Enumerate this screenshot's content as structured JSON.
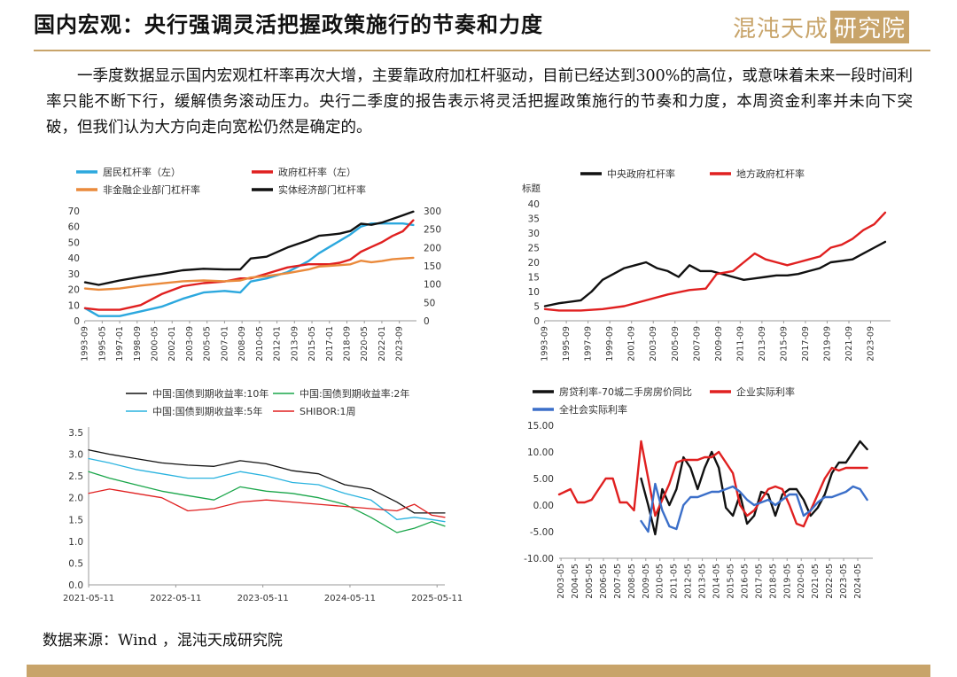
{
  "page": {
    "title": "国内宏观：央行强调灵活把握政策施行的节奏和力度",
    "logo_text": "混沌天成",
    "logo_box_text": "研究院",
    "intro": "一季度数据显示国内宏观杠杆率再次大增，主要靠政府加杠杆驱动，目前已经达到300%的高位，或意味着未来一段时间利率只能不断下行，缓解债务滚动压力。央行二季度的报告表示将灵活把握政策施行的节奏和力度，本周资金利率并未向下突破，但我们认为大方向走向宽松仍然是确定的。",
    "source": "数据来源：Wind ，混沌天成研究院",
    "accent_color": "#c8a46a"
  },
  "chart_data": [
    {
      "type": "line",
      "x_ticks": [
        "1993-09",
        "1995-05",
        "1997-01",
        "1998-09",
        "2000-05",
        "2002-01",
        "2003-09",
        "2005-05",
        "2007-01",
        "2008-09",
        "2010-05",
        "2012-01",
        "2013-09",
        "2015-05",
        "2017-01",
        "2018-09",
        "2020-05",
        "2022-01",
        "2023-09"
      ],
      "xlim": [
        1993.7,
        2025.3
      ],
      "ylim": [
        0,
        70
      ],
      "y_ticks": [
        0,
        10,
        20,
        30,
        40,
        50,
        60,
        70
      ],
      "ylim_right": [
        0,
        300
      ],
      "y_ticks_right": [
        0,
        50,
        100,
        150,
        200,
        250,
        300
      ],
      "legend_position": "top",
      "series": [
        {
          "name": "居民杠杆率（左）",
          "axis": "left",
          "color": "#2ca8de",
          "x": [
            1993.7,
            1995,
            1997,
            1999,
            2001,
            2003,
            2005,
            2007,
            2008.5,
            2009.5,
            2011,
            2013,
            2015,
            2016,
            2017,
            2018,
            2019,
            2020,
            2021,
            2022,
            2023,
            2024,
            2025
          ],
          "y": [
            8,
            3,
            3,
            6,
            9,
            14,
            18,
            19,
            18,
            25,
            27,
            31,
            38,
            43,
            47,
            51,
            55,
            60,
            62,
            62,
            62,
            62,
            61
          ]
        },
        {
          "name": "政府杠杆率（左）",
          "axis": "left",
          "color": "#e02020",
          "x": [
            1993.7,
            1995,
            1997,
            1999,
            2001,
            2003,
            2005,
            2007,
            2008.5,
            2009.5,
            2011,
            2013,
            2015,
            2016,
            2017,
            2018,
            2019,
            2020,
            2021,
            2022,
            2023,
            2024,
            2025
          ],
          "y": [
            8,
            7,
            7,
            10,
            17,
            22,
            24,
            25,
            27,
            27,
            30,
            34,
            36,
            36,
            36,
            37,
            39,
            44,
            47,
            50,
            54,
            57,
            64
          ]
        },
        {
          "name": "非金融企业部门杠杆率",
          "axis": "right",
          "color": "#ea8a3c",
          "x": [
            1993.7,
            1995,
            1997,
            1999,
            2001,
            2003,
            2005,
            2007,
            2008.5,
            2009.5,
            2011,
            2013,
            2015,
            2016,
            2017,
            2018,
            2019,
            2020,
            2021,
            2022,
            2023,
            2024,
            2025
          ],
          "y": [
            88,
            85,
            88,
            96,
            102,
            108,
            110,
            108,
            110,
            118,
            122,
            130,
            140,
            148,
            150,
            152,
            154,
            164,
            160,
            163,
            168,
            170,
            172
          ]
        },
        {
          "name": "实体经济部门杠杆率",
          "axis": "right",
          "color": "#111111",
          "x": [
            1993.7,
            1995,
            1997,
            1999,
            2001,
            2003,
            2005,
            2007,
            2008.5,
            2009.5,
            2011,
            2013,
            2015,
            2016,
            2017,
            2018,
            2019,
            2020,
            2021,
            2022,
            2023,
            2024,
            2025
          ],
          "y": [
            105,
            98,
            110,
            120,
            128,
            138,
            142,
            140,
            140,
            170,
            175,
            200,
            220,
            232,
            235,
            238,
            245,
            265,
            262,
            268,
            278,
            288,
            298
          ]
        }
      ]
    },
    {
      "type": "line",
      "ylabel": "标题",
      "x_ticks": [
        "1993-09",
        "1995-09",
        "1997-09",
        "1999-09",
        "2001-09",
        "2003-09",
        "2005-09",
        "2007-09",
        "2009-09",
        "2011-09",
        "2013-09",
        "2015-09",
        "2017-09",
        "2019-09",
        "2021-09",
        "2023-09"
      ],
      "xlim": [
        1993.7,
        2025.5
      ],
      "ylim": [
        0,
        40
      ],
      "y_ticks": [
        0,
        5,
        10,
        15,
        20,
        25,
        30,
        35,
        40
      ],
      "legend_position": "top",
      "series": [
        {
          "name": "中央政府杠杆率",
          "color": "#111111",
          "x": [
            1993.7,
            1995,
            1997,
            1998,
            1999,
            2000,
            2001,
            2002,
            2003,
            2004,
            2005,
            2006,
            2007,
            2008,
            2009,
            2010,
            2011,
            2012,
            2013,
            2014,
            2015,
            2016,
            2017,
            2018,
            2019,
            2020,
            2021,
            2022,
            2023,
            2024,
            2025
          ],
          "y": [
            5,
            6,
            7,
            10,
            14,
            16,
            18,
            19,
            20,
            18,
            17,
            15,
            19,
            17,
            17,
            16,
            15,
            14,
            14.5,
            15,
            15.5,
            15.5,
            16,
            17,
            18,
            20,
            20.5,
            21,
            23,
            25,
            27
          ]
        },
        {
          "name": "地方政府杠杆率",
          "color": "#e02020",
          "x": [
            1993.7,
            1995,
            1997,
            1999,
            2001,
            2003,
            2005,
            2007,
            2008.5,
            2009.5,
            2011,
            2012,
            2013,
            2014,
            2015,
            2016,
            2017,
            2018,
            2019,
            2020,
            2021,
            2022,
            2023,
            2024,
            2025
          ],
          "y": [
            4,
            3.5,
            3.5,
            4,
            5,
            7,
            9,
            10.5,
            11,
            16,
            17,
            20,
            23,
            21,
            20,
            19,
            20,
            21,
            22,
            25,
            26,
            28,
            31,
            33,
            37
          ]
        }
      ]
    },
    {
      "type": "line",
      "x_ticks": [
        "2021-05-11",
        "2022-05-11",
        "2023-05-11",
        "2024-05-11",
        "2025-05-11"
      ],
      "xlim": [
        2021.36,
        2025.45
      ],
      "ylim": [
        0,
        3.5
      ],
      "y_ticks": [
        "0.0",
        "0.5",
        "1.0",
        "1.5",
        "2.0",
        "2.5",
        "3.0",
        "3.5"
      ],
      "legend_position": "top",
      "series": [
        {
          "name": "中国:国债到期收益率:10年",
          "color": "#111111",
          "x": [
            2021.36,
            2021.6,
            2021.9,
            2022.2,
            2022.5,
            2022.8,
            2023.1,
            2023.4,
            2023.7,
            2024.0,
            2024.3,
            2024.6,
            2024.9,
            2025.1,
            2025.3,
            2025.45
          ],
          "y": [
            3.1,
            3.0,
            2.9,
            2.8,
            2.75,
            2.72,
            2.85,
            2.78,
            2.62,
            2.55,
            2.3,
            2.2,
            1.9,
            1.65,
            1.65,
            1.65
          ]
        },
        {
          "name": "中国:国债到期收益率:2年",
          "color": "#1aa64a",
          "x": [
            2021.36,
            2021.6,
            2021.9,
            2022.2,
            2022.5,
            2022.8,
            2023.1,
            2023.4,
            2023.7,
            2024.0,
            2024.3,
            2024.6,
            2024.9,
            2025.1,
            2025.3,
            2025.45
          ],
          "y": [
            2.6,
            2.45,
            2.3,
            2.15,
            2.05,
            1.95,
            2.25,
            2.15,
            2.1,
            2.0,
            1.85,
            1.55,
            1.2,
            1.3,
            1.45,
            1.35
          ]
        },
        {
          "name": "中国:国债到期收益率:5年",
          "color": "#2ab3df",
          "x": [
            2021.36,
            2021.6,
            2021.9,
            2022.2,
            2022.5,
            2022.8,
            2023.1,
            2023.4,
            2023.7,
            2024.0,
            2024.3,
            2024.6,
            2024.9,
            2025.1,
            2025.3,
            2025.45
          ],
          "y": [
            2.9,
            2.8,
            2.65,
            2.55,
            2.45,
            2.45,
            2.6,
            2.5,
            2.35,
            2.3,
            2.1,
            1.95,
            1.5,
            1.55,
            1.5,
            1.45
          ]
        },
        {
          "name": "SHIBOR:1周",
          "color": "#e02020",
          "x": [
            2021.36,
            2021.6,
            2021.9,
            2022.2,
            2022.5,
            2022.8,
            2023.1,
            2023.4,
            2023.7,
            2024.0,
            2024.3,
            2024.6,
            2024.9,
            2025.1,
            2025.3,
            2025.45
          ],
          "y": [
            2.1,
            2.2,
            2.1,
            2.0,
            1.7,
            1.75,
            1.9,
            1.95,
            1.9,
            1.85,
            1.8,
            1.75,
            1.7,
            1.85,
            1.6,
            1.55
          ]
        }
      ]
    },
    {
      "type": "line",
      "x_ticks": [
        "2003-05",
        "2004-05",
        "2005-05",
        "2006-05",
        "2007-05",
        "2008-05",
        "2009-05",
        "2010-05",
        "2011-05",
        "2012-05",
        "2013-05",
        "2014-05",
        "2015-05",
        "2016-05",
        "2017-05",
        "2018-05",
        "2019-05",
        "2020-05",
        "2021-05",
        "2022-05",
        "2023-05",
        "2024-05"
      ],
      "xlim": [
        2003.2,
        2025.4
      ],
      "ylim": [
        -10,
        15
      ],
      "y_ticks": [
        "-10.00",
        "-5.00",
        "0.00",
        "5.00",
        "10.00",
        "15.00"
      ],
      "legend_position": "top",
      "series": [
        {
          "name": "房贷利率-70城二手房房价同比",
          "color": "#111111",
          "x": [
            2009.0,
            2009.5,
            2010.0,
            2010.5,
            2011.0,
            2011.5,
            2012.0,
            2012.5,
            2013.0,
            2013.5,
            2014.0,
            2014.5,
            2015.0,
            2015.5,
            2016.0,
            2016.5,
            2017.0,
            2017.5,
            2018.0,
            2018.5,
            2019.0,
            2019.5,
            2020.0,
            2020.5,
            2021.0,
            2021.5,
            2022.0,
            2022.5,
            2023.0,
            2023.5,
            2024.0,
            2024.5,
            2025.0
          ],
          "y": [
            5.0,
            0.0,
            -5.5,
            3.0,
            0.0,
            3.0,
            9.0,
            7.0,
            3.0,
            7.0,
            10.0,
            7.0,
            -0.5,
            -2.0,
            2.0,
            -3.5,
            -2.0,
            2.5,
            2.0,
            -2.0,
            2.0,
            3.0,
            3.0,
            1.0,
            -2.0,
            -0.5,
            2.0,
            6.0,
            8.0,
            8.0,
            10.0,
            12.0,
            10.5
          ]
        },
        {
          "name": "企业实际利率",
          "color": "#e02020",
          "x": [
            2003.2,
            2004.0,
            2004.5,
            2005.0,
            2005.5,
            2006.0,
            2006.5,
            2007.0,
            2007.5,
            2008.0,
            2008.5,
            2009.0,
            2009.5,
            2010.0,
            2010.5,
            2011.0,
            2011.5,
            2012.0,
            2012.5,
            2013.0,
            2013.5,
            2014.0,
            2014.5,
            2015.0,
            2015.5,
            2016.0,
            2016.5,
            2017.0,
            2017.5,
            2018.0,
            2018.5,
            2019.0,
            2019.5,
            2020.0,
            2020.5,
            2021.0,
            2021.5,
            2022.0,
            2022.5,
            2023.0,
            2023.5,
            2024.0,
            2024.5,
            2025.0
          ],
          "y": [
            2.0,
            3.0,
            0.5,
            0.5,
            1.0,
            3.0,
            5.0,
            5.0,
            0.5,
            0.5,
            -1.0,
            12.0,
            5.0,
            -2.0,
            1.0,
            4.0,
            8.0,
            8.5,
            8.5,
            8.5,
            9.0,
            9.0,
            10.0,
            8.0,
            6.0,
            0.0,
            -2.0,
            -1.0,
            1.0,
            3.0,
            3.5,
            3.0,
            0.0,
            -3.5,
            -4.0,
            -1.0,
            2.0,
            5.0,
            7.0,
            6.5,
            7.0,
            7.0,
            7.0,
            7.0
          ]
        },
        {
          "name": "全社会实际利率",
          "color": "#3b6fc9",
          "x": [
            2009.0,
            2009.5,
            2010.0,
            2010.5,
            2011.0,
            2011.5,
            2012.0,
            2012.5,
            2013.0,
            2013.5,
            2014.0,
            2014.5,
            2015.0,
            2015.5,
            2016.0,
            2016.5,
            2017.0,
            2017.5,
            2018.0,
            2018.5,
            2019.0,
            2019.5,
            2020.0,
            2020.5,
            2021.0,
            2021.5,
            2022.0,
            2022.5,
            2023.0,
            2023.5,
            2024.0,
            2024.5,
            2025.0
          ],
          "y": [
            -3.0,
            -5.0,
            4.0,
            -1.0,
            -4.0,
            -4.5,
            0.0,
            1.5,
            1.5,
            2.0,
            2.5,
            2.5,
            3.0,
            3.5,
            2.5,
            1.0,
            0.0,
            0.5,
            1.0,
            0.0,
            1.0,
            2.0,
            2.0,
            -2.0,
            -1.0,
            0.5,
            1.5,
            1.5,
            2.0,
            2.5,
            3.5,
            3.0,
            1.0
          ]
        }
      ]
    }
  ]
}
